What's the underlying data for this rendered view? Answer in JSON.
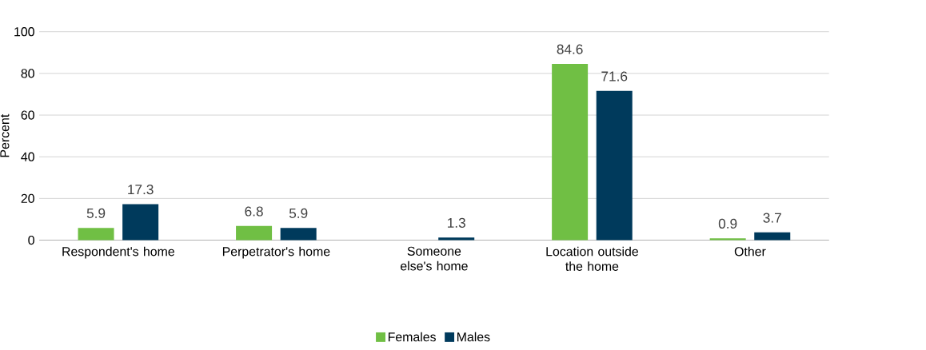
{
  "chart_data": {
    "type": "bar",
    "ylabel": "Percent",
    "categories": [
      "Respondent's home",
      "Perpetrator's home",
      "Someone else's home",
      "Location outside the home",
      "Other"
    ],
    "series": [
      {
        "name": "Females",
        "color": "#70bf44",
        "values": [
          5.9,
          6.8,
          null,
          84.6,
          0.9
        ]
      },
      {
        "name": "Males",
        "color": "#003a5c",
        "values": [
          17.3,
          5.9,
          1.3,
          71.6,
          3.7
        ]
      }
    ],
    "ylim": [
      0,
      100
    ],
    "yticks": [
      0,
      20,
      40,
      60,
      80,
      100
    ],
    "grid": "y",
    "legend": "bottom",
    "data_labels": true
  }
}
